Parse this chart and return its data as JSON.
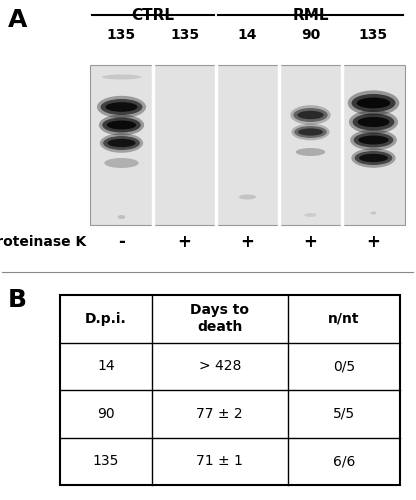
{
  "panel_A_label": "A",
  "panel_B_label": "B",
  "ctrl_label": "CTRL",
  "rml_label": "RML",
  "lane_numbers": [
    "135",
    "135",
    "14",
    "90",
    "135"
  ],
  "proteinase_k_label": "Proteinase K",
  "pk_signs": [
    "-",
    "+",
    "+",
    "+",
    "+"
  ],
  "table_headers": [
    "D.p.i.",
    "Days to\ndeath",
    "n/nt"
  ],
  "table_rows": [
    [
      "14",
      "> 428",
      "0/5"
    ],
    [
      "90",
      "77 ± 2",
      "5/5"
    ],
    [
      "135",
      "71 ± 1",
      "6/6"
    ]
  ],
  "bg_color": "#ffffff",
  "text_color": "#000000",
  "blot_bg": "#e8e8e8",
  "table_line_color": "#000000",
  "sep_line_color": "#888888"
}
